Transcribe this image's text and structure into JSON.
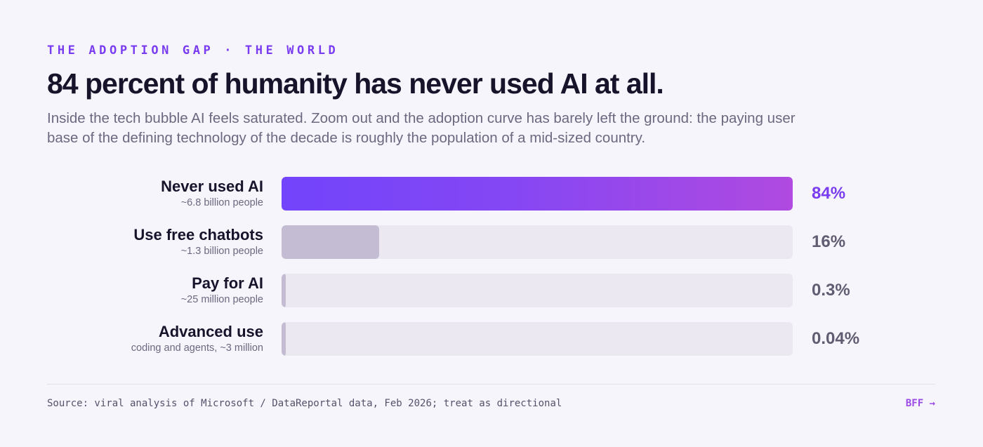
{
  "header": {
    "eyebrow": "THE ADOPTION GAP · THE WORLD",
    "title": "84 percent of humanity has never used AI at all.",
    "subtitle": "Inside the tech bubble AI feels saturated. Zoom out and the adoption curve has barely left the ground: the paying user base of the defining technology of the decade is roughly the population of a mid-sized country."
  },
  "chart_data": {
    "type": "bar",
    "orientation": "horizontal",
    "categories": [
      "Never used AI",
      "Use free chatbots",
      "Pay for AI",
      "Advanced use"
    ],
    "details": [
      "~6.8 billion people",
      "~1.3 billion people",
      "~25 million people",
      "coding and agents, ~3 million"
    ],
    "values": [
      84,
      16,
      0.3,
      0.04
    ],
    "value_labels": [
      "84%",
      "16%",
      "0.3%",
      "0.04%"
    ],
    "unit": "%",
    "xlim": [
      0,
      84
    ],
    "highlight_index": 0,
    "colors": {
      "highlight_start": "#7244fb",
      "highlight_end": "#b04ae0",
      "muted": "#c4bcd2",
      "track": "#ebe8f1"
    }
  },
  "footer": {
    "source": "Source: viral analysis of Microsoft / DataReportal data, Feb 2026; treat as directional",
    "brand": "BFF →"
  }
}
